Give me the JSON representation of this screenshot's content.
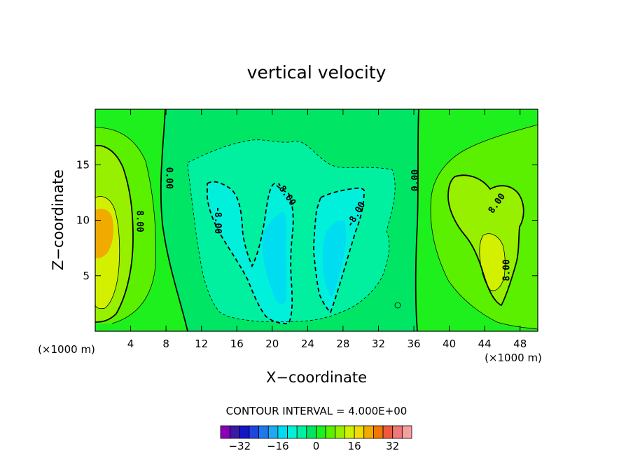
{
  "chart_data": {
    "type": "heatmap",
    "title": "vertical velocity",
    "xlabel": "X−coordinate",
    "ylabel": "Z−coordinate",
    "x_unit_left": "(×1000 m)",
    "x_unit_right": "(×1000 m)",
    "xlim": [
      0,
      50
    ],
    "ylim": [
      0,
      20
    ],
    "x_ticks": [
      4,
      8,
      12,
      16,
      20,
      24,
      28,
      32,
      36,
      40,
      44,
      48
    ],
    "y_ticks": [
      5,
      10,
      15
    ],
    "contour_interval_text": "CONTOUR INTERVAL = 4.000E+00",
    "contour_labels": [
      {
        "text": "0.00",
        "x": 8.3,
        "y": 13.8,
        "rotation": 90
      },
      {
        "text": "8.00",
        "x": 5.0,
        "y": 9.9,
        "rotation": 90
      },
      {
        "text": "-8.00",
        "x": 13.8,
        "y": 10.0,
        "rotation": 90
      },
      {
        "text": "-8.00",
        "x": 21.5,
        "y": 12.4,
        "rotation": 55
      },
      {
        "text": "-8.00",
        "x": 29.5,
        "y": 10.5,
        "rotation": -60
      },
      {
        "text": "0.00",
        "x": 36.2,
        "y": 13.6,
        "rotation": -90
      },
      {
        "text": "8.00",
        "x": 45.4,
        "y": 11.5,
        "rotation": -55
      },
      {
        "text": "8.00",
        "x": 46.5,
        "y": 5.5,
        "rotation": -90
      }
    ],
    "colorbar": {
      "levels": [
        -36,
        -32,
        -28,
        -24,
        -20,
        -16,
        -12,
        -8,
        -4,
        0,
        4,
        8,
        12,
        16,
        20,
        24,
        28,
        32,
        36
      ],
      "colors": [
        "#8a00b4",
        "#3c1aa8",
        "#1414c8",
        "#1e46dc",
        "#1e78f0",
        "#1eaaf0",
        "#00dcf0",
        "#00f0dc",
        "#00f0a0",
        "#00e664",
        "#1ef01e",
        "#5af000",
        "#96f000",
        "#d2f000",
        "#f0dc00",
        "#f0aa00",
        "#f07800",
        "#f05a3c",
        "#f07878",
        "#f5a0a0"
      ],
      "tick_labels": [
        "−32",
        "−16",
        "0",
        "16",
        "32"
      ],
      "tick_values": [
        -32,
        -16,
        0,
        16,
        32
      ]
    }
  }
}
